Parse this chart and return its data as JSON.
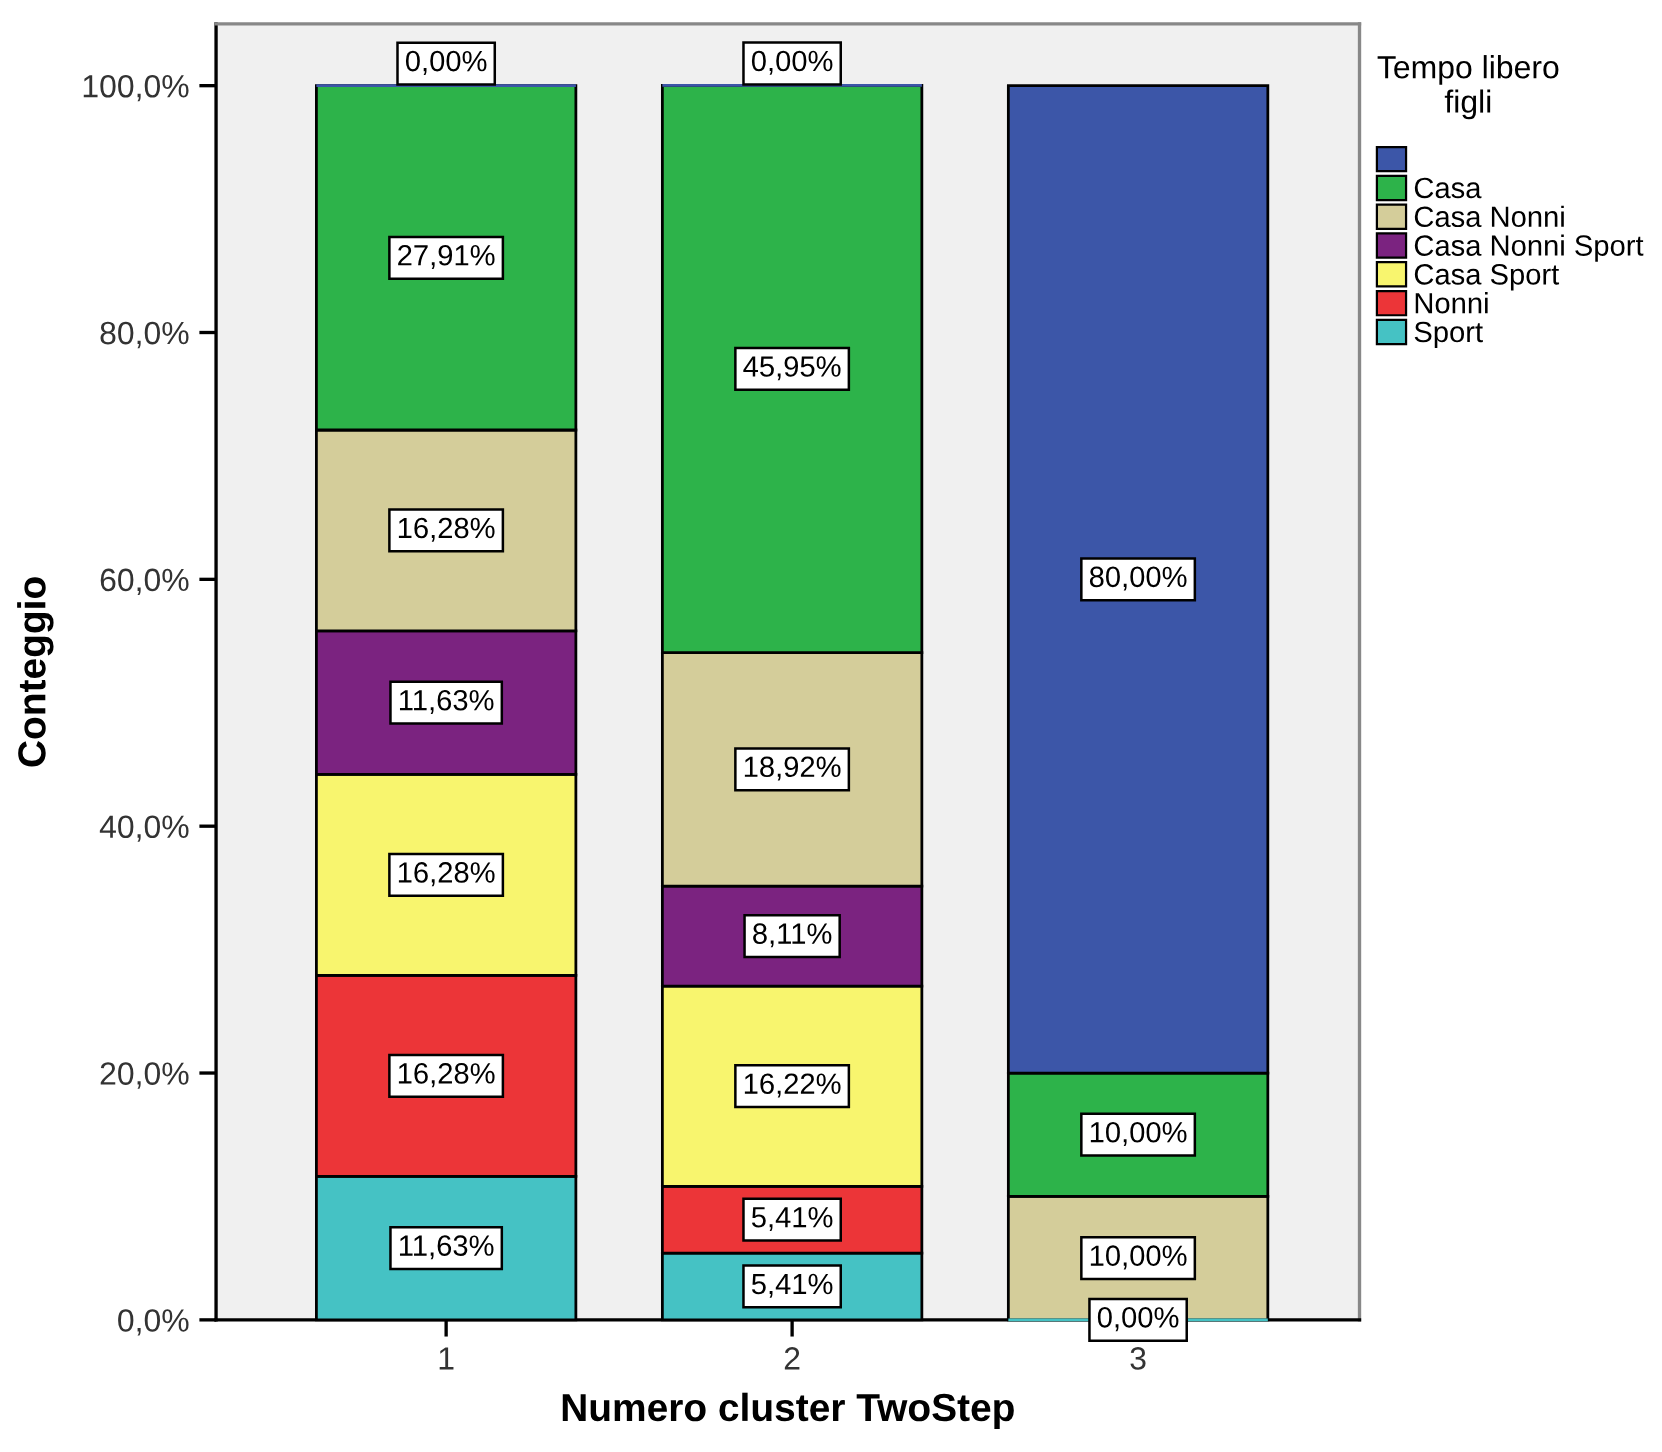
{
  "chart_data": {
    "type": "bar",
    "stacked": true,
    "xlabel": "Numero cluster TwoStep",
    "ylabel": "Conteggio",
    "legend_title": "Tempo libero\nfigli",
    "legend": "right",
    "categories": [
      "1",
      "2",
      "3"
    ],
    "ylim": [
      0,
      105
    ],
    "yticks": [
      {
        "value": 0,
        "label": "0,0%"
      },
      {
        "value": 20,
        "label": "20,0%"
      },
      {
        "value": 40,
        "label": "40,0%"
      },
      {
        "value": 60,
        "label": "60,0%"
      },
      {
        "value": 80,
        "label": "80,0%"
      },
      {
        "value": 100,
        "label": "100,0%"
      }
    ],
    "series": [
      {
        "name": "Sport",
        "color": "#45c2c4",
        "values": [
          11.63,
          5.41,
          0
        ],
        "value_labels": [
          "11,63%",
          "5,41%",
          "0,00%"
        ]
      },
      {
        "name": "Nonni",
        "color": "#ec3538",
        "values": [
          16.28,
          5.41,
          null
        ],
        "value_labels": [
          "16,28%",
          "5,41%",
          null
        ]
      },
      {
        "name": "Casa Sport",
        "color": "#f8f56e",
        "values": [
          16.28,
          16.22,
          null
        ],
        "value_labels": [
          "16,28%",
          "16,22%",
          null
        ]
      },
      {
        "name": "Casa Nonni Sport",
        "color": "#7b2380",
        "values": [
          11.63,
          8.11,
          null
        ],
        "value_labels": [
          "11,63%",
          "8,11%",
          null
        ]
      },
      {
        "name": "Casa Nonni",
        "color": "#d4cd9a",
        "values": [
          16.28,
          18.92,
          10.0
        ],
        "value_labels": [
          "16,28%",
          "18,92%",
          "10,00%"
        ]
      },
      {
        "name": "Casa",
        "color": "#2db34a",
        "values": [
          27.91,
          45.95,
          10.0
        ],
        "value_labels": [
          "27,91%",
          "45,95%",
          "10,00%"
        ]
      },
      {
        "color": "#3c56a8",
        "values": [
          0,
          0,
          80.0
        ],
        "value_labels": [
          "0,00%",
          "0,00%",
          "80,00%"
        ]
      }
    ]
  }
}
